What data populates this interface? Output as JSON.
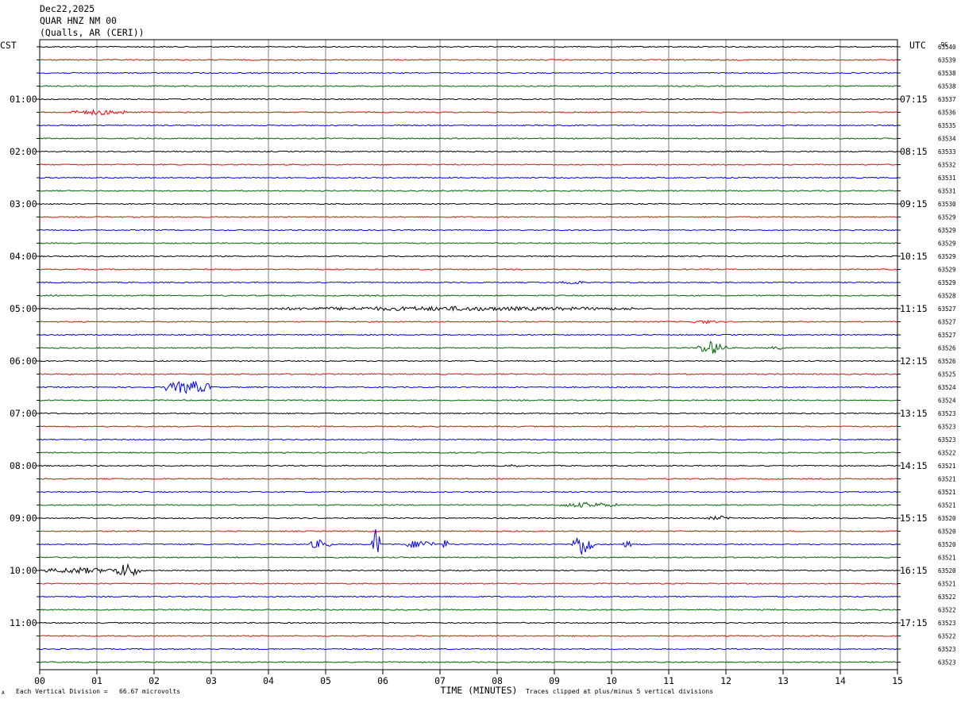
{
  "header": {
    "date": "Dec22,2025",
    "station": "QUAR HNZ NM 00",
    "location": "(Qualls, AR (CERI))"
  },
  "axis_labels": {
    "left_tz": "CST",
    "right_tz": "UTC",
    "dc_header": "DC",
    "xlabel": "TIME (MINUTES)"
  },
  "footer": {
    "scale_note": "Each Vertical Division =   66.67 microvolts",
    "clip_note": "Traces clipped at plus/minus 5 vertical divisions",
    "corner_mark": "A"
  },
  "colors": {
    "trace_cycle": [
      "#000000",
      "#ff0000",
      "#0000ff",
      "#006400"
    ],
    "grid": "#808080",
    "frame": "#000000"
  },
  "chart_data": {
    "type": "line",
    "title": "QUAR HNZ NM 00",
    "xlabel": "TIME (MINUTES)",
    "xlim": [
      0,
      15
    ],
    "x_ticks": [
      "00",
      "01",
      "02",
      "03",
      "04",
      "05",
      "06",
      "07",
      "08",
      "09",
      "10",
      "11",
      "12",
      "13",
      "14",
      "15"
    ],
    "grid": true,
    "rows_per_hour": 4,
    "left_hour_labels": [
      "01:00",
      "02:00",
      "03:00",
      "04:00",
      "05:00",
      "06:00",
      "07:00",
      "08:00",
      "09:00",
      "10:00",
      "11:00"
    ],
    "right_hour_labels": [
      "07:15",
      "08:15",
      "09:15",
      "10:15",
      "11:15",
      "12:15",
      "13:15",
      "14:15",
      "15:15",
      "16:15",
      "17:15"
    ],
    "dc_offsets": [
      "63540",
      "63539",
      "63538",
      "63538",
      "63537",
      "63536",
      "63535",
      "63534",
      "63533",
      "63532",
      "63531",
      "63531",
      "63530",
      "63529",
      "63529",
      "63529",
      "63529",
      "63529",
      "63529",
      "63528",
      "63527",
      "63527",
      "63527",
      "63526",
      "63526",
      "63525",
      "63524",
      "63524",
      "63523",
      "63523",
      "63523",
      "63522",
      "63521",
      "63521",
      "63521",
      "63521",
      "63520",
      "63520",
      "63520",
      "63521",
      "63520",
      "63521",
      "63522",
      "63522",
      "63523",
      "63522",
      "63523",
      "63523"
    ],
    "events": [
      {
        "row": 5,
        "start_min": 0.5,
        "end_min": 1.6,
        "amplitude": 0.6
      },
      {
        "row": 18,
        "start_min": 9.1,
        "end_min": 9.5,
        "amplitude": 0.5
      },
      {
        "row": 20,
        "start_min": 4.0,
        "end_min": 10.5,
        "amplitude": 0.5
      },
      {
        "row": 21,
        "start_min": 11.4,
        "end_min": 11.9,
        "amplitude": 0.4
      },
      {
        "row": 23,
        "start_min": 11.5,
        "end_min": 12.0,
        "amplitude": 1.5
      },
      {
        "row": 23,
        "start_min": 12.8,
        "end_min": 13.0,
        "amplitude": 0.5
      },
      {
        "row": 26,
        "start_min": 2.2,
        "end_min": 3.0,
        "amplitude": 1.5
      },
      {
        "row": 32,
        "start_min": 8.2,
        "end_min": 8.4,
        "amplitude": 0.4
      },
      {
        "row": 35,
        "start_min": 9.1,
        "end_min": 10.1,
        "amplitude": 0.6
      },
      {
        "row": 36,
        "start_min": 11.7,
        "end_min": 12.1,
        "amplitude": 0.5
      },
      {
        "row": 38,
        "start_min": 4.7,
        "end_min": 5.1,
        "amplitude": 1.0
      },
      {
        "row": 38,
        "start_min": 5.8,
        "end_min": 5.95,
        "amplitude": 3.5
      },
      {
        "row": 38,
        "start_min": 6.4,
        "end_min": 6.9,
        "amplitude": 1.0
      },
      {
        "row": 38,
        "start_min": 7.05,
        "end_min": 7.15,
        "amplitude": 1.2
      },
      {
        "row": 38,
        "start_min": 9.3,
        "end_min": 9.7,
        "amplitude": 2.5
      },
      {
        "row": 38,
        "start_min": 10.2,
        "end_min": 10.35,
        "amplitude": 0.8
      },
      {
        "row": 40,
        "start_min": 0.1,
        "end_min": 1.3,
        "amplitude": 0.7
      },
      {
        "row": 40,
        "start_min": 1.3,
        "end_min": 1.75,
        "amplitude": 1.6
      }
    ]
  }
}
